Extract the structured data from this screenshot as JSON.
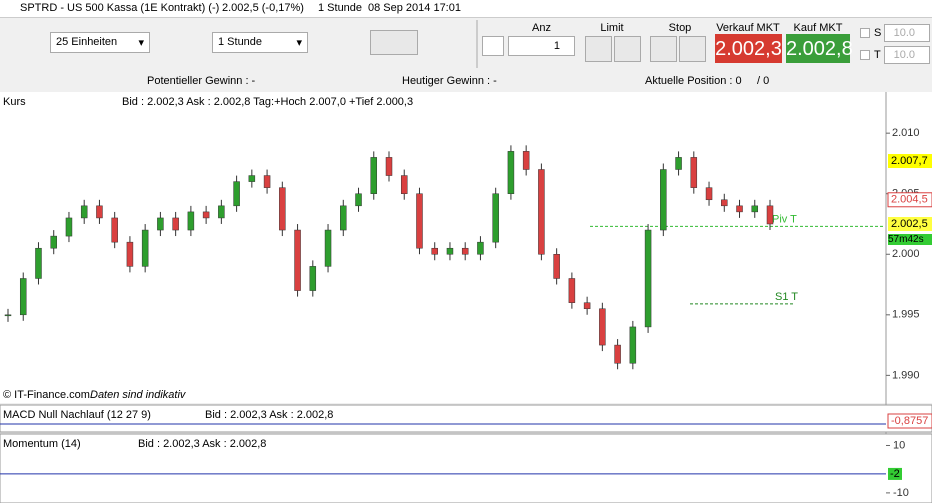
{
  "window": {
    "title": "SPTRD - US 500 Kassa (1E Kontrakt) (-)",
    "change": "2.002,5 (-0,17%)",
    "interval": "1 Stunde",
    "datetime": "08 Sep 2014 17:01"
  },
  "toolbar": {
    "units": "25 Einheiten",
    "period": "1 Stunde",
    "qty_label": "Anz",
    "qty": "1",
    "limit": "Limit",
    "stop": "Stop",
    "sell_label": "Verkauf MKT",
    "sell_price": "2.002,3",
    "buy_label": "Kauf MKT",
    "buy_price": "2.002,8",
    "s_label": "S",
    "s_value": "10.0",
    "t_label": "T",
    "t_value": "10.0"
  },
  "info": {
    "potential": "Potentieller Gewinn : -",
    "today": "Heutiger Gewinn : -",
    "position": "Aktuelle Position : 0",
    "position_total": "/ 0"
  },
  "chart_data": {
    "type": "candlestick",
    "name": "Kurs",
    "quote": "Bid : 2.002,3 Ask : 2.002,8 Tag:+Hoch 2.007,0 +Tief 2.000,3",
    "values": [
      1995,
      1998,
      2000.5,
      2001.5,
      2003,
      2004,
      2003,
      2001,
      1999,
      2002,
      2003,
      2002,
      2003.5,
      2003,
      2004,
      2006,
      2006.5,
      2005.5,
      2002,
      1997,
      1999,
      2002,
      2004,
      2005,
      2008,
      2006.5,
      2005,
      2000.5,
      2000,
      2000.5,
      2000,
      2001,
      2005,
      2008.5,
      2007,
      2000,
      1998,
      1996,
      1995.5,
      1992.5,
      1991,
      1994,
      2002,
      2007,
      2008,
      2005.5,
      2004.5,
      2004,
      2003.5,
      2004,
      2002.5
    ],
    "up_color": "#2e9e2e",
    "down_color": "#d94040",
    "ylim": [
      1987.8,
      2013.4
    ],
    "yticks": [
      {
        "value": 1990,
        "label": "1.990"
      },
      {
        "value": 1995,
        "label": "1.995"
      },
      {
        "value": 2000,
        "label": "2.000"
      },
      {
        "value": 2005,
        "label": "2.005"
      },
      {
        "value": 2010,
        "label": "2.010"
      }
    ],
    "levels": [
      {
        "name": "Piv T",
        "value": 2002.3,
        "color": "#33bb33"
      },
      {
        "name": "S1 T",
        "value": 1995.9,
        "color": "#228822"
      }
    ],
    "markers": [
      {
        "value": 2007.7,
        "label": "2.007,7",
        "color": "#ffff00"
      },
      {
        "value": 2004.5,
        "label": "2.004,5",
        "color": "#ffffff"
      },
      {
        "value": 2002.5,
        "label": "2.002,5",
        "color": "#ffff40"
      }
    ],
    "countdown": "57m42s",
    "credit": "© IT-Finance.com",
    "note": "Daten sind indikativ"
  },
  "macd": {
    "name": "MACD Null Nachlauf (12 27 9)",
    "quote": "Bid : 2.002,3 Ask : 2.002,8",
    "marker": {
      "value": -0.8757,
      "label": "-0,8757"
    }
  },
  "momentum": {
    "name": "Momentum (14)",
    "quote": "Bid : 2.002,3 Ask : 2.002,8",
    "ylim": [
      -13,
      14
    ],
    "yticks": [
      10,
      -10
    ],
    "marker": -2
  }
}
